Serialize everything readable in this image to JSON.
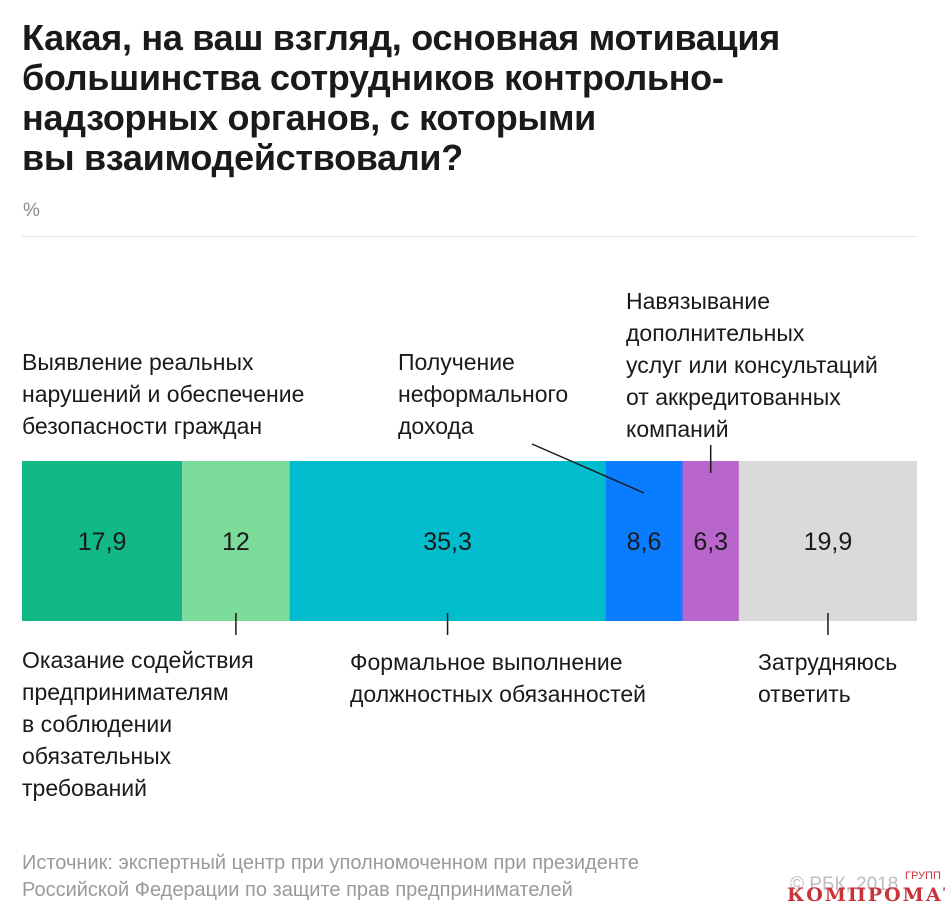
{
  "title": "Какая, на ваш взгляд, основная мотивация\nбольшинства сотрудников контрольно-\nнадзорных органов, с которыми\nвы взаимодействовали?",
  "unit": "%",
  "labels_top": [
    "Выявление реальных\nнарушений и обеспечение\nбезопасности граждан",
    "Получение\nнеформального\nдохода",
    "Навязывание\nдополнительных\nуслуг или консультаций\nот аккредитованных\nкомпаний"
  ],
  "labels_bottom": [
    "Оказание содействия\nпредпринимателям\nв соблюдении\nобязательных\nтребований",
    "Формальное выполнение\nдолжностных обязанностей",
    "Затрудняюсь\nответить"
  ],
  "chart_data": {
    "type": "bar",
    "subtype": "stacked-horizontal-100",
    "unit": "%",
    "series": [
      {
        "name": "Выявление реальных нарушений и обеспечение безопасности граждан",
        "value": 17.9,
        "label": "17,9",
        "color": "#12b886"
      },
      {
        "name": "Оказание содействия предпринимателям в соблюдении обязательных требований",
        "value": 12,
        "label": "12",
        "color": "#7bdc9a"
      },
      {
        "name": "Формальное выполнение должностных обязанностей",
        "value": 35.3,
        "label": "35,3",
        "color": "#00bccc"
      },
      {
        "name": "Получение неформального дохода",
        "value": 8.6,
        "label": "8,6",
        "color": "#0a7cff"
      },
      {
        "name": "Навязывание дополнительных услуг или консультаций от аккредитованных компаний",
        "value": 6.3,
        "label": "6,3",
        "color": "#b866cc"
      },
      {
        "name": "Затрудняюсь ответить",
        "value": 19.9,
        "label": "19,9",
        "color": "#dadada"
      }
    ]
  },
  "source": "Источник: экспертный центр при уполномоченном при президенте\nРоссийской Федерации по защите прав предпринимателей",
  "copyright": "© РБК, 2018",
  "watermark": {
    "main": "КОМПРОМАТ",
    "small": "ГРУПП"
  }
}
